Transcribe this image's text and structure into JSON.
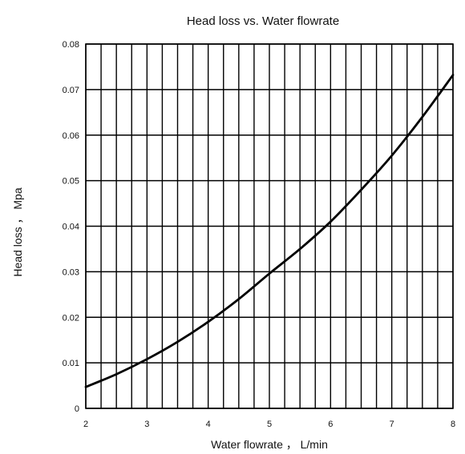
{
  "chart_data": {
    "type": "line",
    "title": "Head loss vs. Water flowrate",
    "xlabel": "Water flowrate ， L/min",
    "ylabel": "Head loss ， Mpa",
    "xlim": [
      2,
      8
    ],
    "ylim": [
      0,
      0.08
    ],
    "x_ticks": [
      2,
      3,
      4,
      5,
      6,
      7,
      8
    ],
    "x_tick_labels": [
      "2",
      "3",
      "4",
      "5",
      "6",
      "7",
      "8"
    ],
    "y_ticks": [
      0,
      0.01,
      0.02,
      0.03,
      0.04,
      0.05,
      0.06,
      0.07,
      0.08
    ],
    "y_tick_labels": [
      "0",
      "0.01",
      "0.02",
      "0.03",
      "0.04",
      "0.05",
      "0.06",
      "0.07",
      "0.08"
    ],
    "grid": true,
    "x_minor_per_major": 4,
    "legend": "none",
    "series": [
      {
        "color": "#000000",
        "x": [
          2.0,
          2.5,
          3.0,
          3.5,
          4.0,
          4.5,
          5.0,
          5.5,
          6.0,
          6.5,
          7.0,
          7.5,
          8.0
        ],
        "y": [
          0.0047,
          0.0075,
          0.0108,
          0.0146,
          0.019,
          0.024,
          0.0296,
          0.035,
          0.041,
          0.048,
          0.0555,
          0.064,
          0.0732
        ]
      }
    ]
  }
}
